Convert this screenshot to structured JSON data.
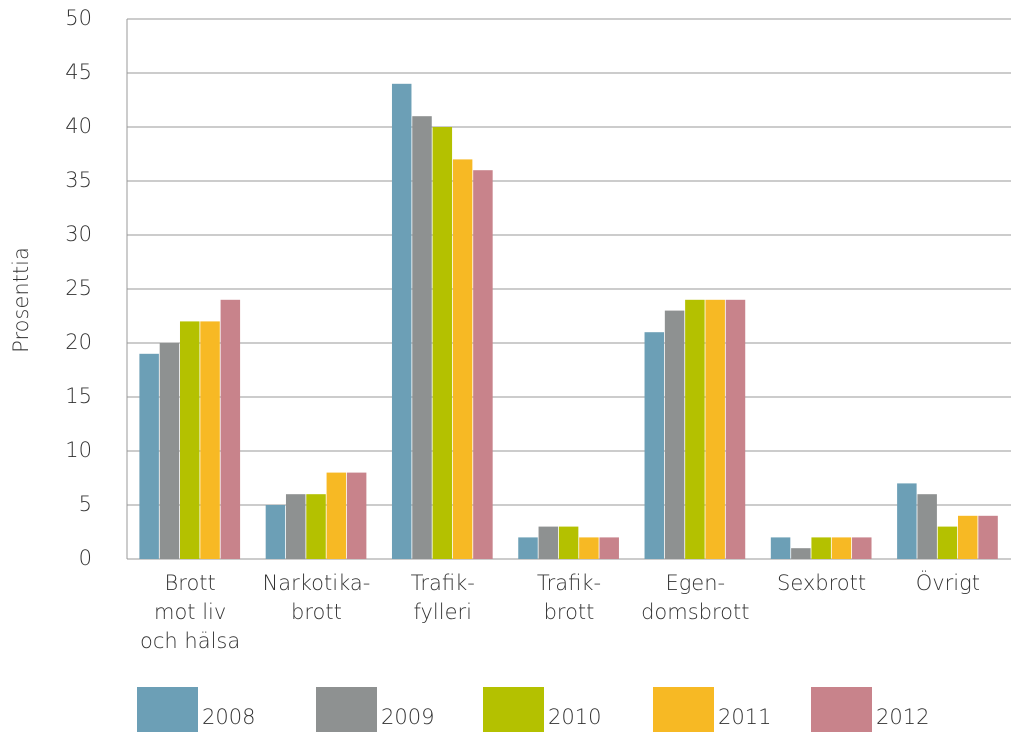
{
  "chart_data": {
    "type": "bar",
    "ylabel": "Prosenttia",
    "categories": [
      [
        "Brott",
        "mot liv",
        "och hälsa"
      ],
      [
        "Narkotika-",
        "brott"
      ],
      [
        "Trafik-",
        "fylleri"
      ],
      [
        "Trafik-",
        "brott"
      ],
      [
        "Egen-",
        "domsbrott"
      ],
      [
        "Sexbrott"
      ],
      [
        "Övrigt"
      ]
    ],
    "series": [
      {
        "name": "2008",
        "color": "#6c9fb6",
        "values": [
          19,
          5,
          44,
          2,
          21,
          2,
          7
        ]
      },
      {
        "name": "2009",
        "color": "#8e9191",
        "values": [
          20,
          6,
          41,
          3,
          23,
          1,
          6
        ]
      },
      {
        "name": "2010",
        "color": "#b4c100",
        "values": [
          22,
          6,
          40,
          3,
          24,
          2,
          3
        ]
      },
      {
        "name": "2011",
        "color": "#f7b924",
        "values": [
          22,
          8,
          37,
          2,
          24,
          2,
          4
        ]
      },
      {
        "name": "2012",
        "color": "#c8838b",
        "values": [
          24,
          8,
          36,
          2,
          24,
          2,
          4
        ]
      }
    ],
    "ylim": [
      0,
      50
    ],
    "yticks": [
      0,
      5,
      10,
      15,
      20,
      25,
      30,
      35,
      40,
      45,
      50
    ],
    "grid": true,
    "legend": "bottom"
  }
}
